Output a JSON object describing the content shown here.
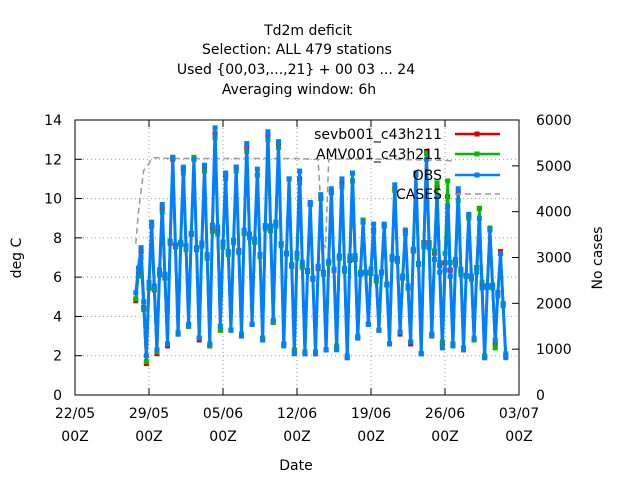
{
  "chart_data": {
    "type": "line",
    "title_lines": [
      "Td2m deficit",
      "Selection: ALL    479 stations",
      "Used {00,03,...,21} + 00 03 ... 24",
      "Averaging window:  6h"
    ],
    "xlabel": "Date",
    "ylabel": "deg C",
    "y2label": "No cases",
    "x_range_days": [
      0,
      42
    ],
    "x_ticks": [
      {
        "day": 0,
        "line1": "22/05",
        "line2": "00Z"
      },
      {
        "day": 7,
        "line1": "29/05",
        "line2": "00Z"
      },
      {
        "day": 14,
        "line1": "05/06",
        "line2": "00Z"
      },
      {
        "day": 21,
        "line1": "12/06",
        "line2": "00Z"
      },
      {
        "day": 28,
        "line1": "19/06",
        "line2": "00Z"
      },
      {
        "day": 35,
        "line1": "26/06",
        "line2": "00Z"
      },
      {
        "day": 42,
        "line1": "03/07",
        "line2": "00Z"
      }
    ],
    "ylim": [
      0,
      14
    ],
    "y_ticks": [
      0,
      2,
      4,
      6,
      8,
      10,
      12,
      14
    ],
    "y2lim": [
      0,
      6000
    ],
    "y2_ticks": [
      0,
      1000,
      2000,
      3000,
      4000,
      5000,
      6000
    ],
    "grid": true,
    "legend_position": "top-right",
    "series": [
      {
        "name": "sevb001_c43h211",
        "color": "#dd0000",
        "marker": "square",
        "axis": "left",
        "peaks": [
          7.3,
          8.6,
          9.5,
          12.0,
          11.5,
          12.0,
          11.6,
          13.3,
          11.2,
          11.6,
          12.6,
          11.2,
          13.2,
          12.8,
          11.0,
          11.0,
          9.7,
          10.0,
          10.3,
          10.8,
          10.9,
          8.9,
          8.4,
          8.6,
          10.5,
          8.3,
          11.2,
          12.4,
          10.6,
          10.1,
          10.3,
          9.1,
          9.5,
          8.5,
          7.3
        ],
        "troughs": [
          4.8,
          1.6,
          2.1,
          2.5,
          3.1,
          3.5,
          2.8,
          2.5,
          3.3,
          3.3,
          3.1,
          3.6,
          2.9,
          3.7,
          2.6,
          2.2,
          2.1,
          2.1,
          2.3,
          2.4,
          1.9,
          2.9,
          3.6,
          3.3,
          2.6,
          3.1,
          2.6,
          2.1,
          3.1,
          2.6,
          2.6,
          2.3,
          2.8,
          1.9,
          2.6,
          2.0
        ]
      },
      {
        "name": "AMV001_c43h211",
        "color": "#00bb00",
        "marker": "square",
        "axis": "left",
        "peaks": [
          7.0,
          8.6,
          9.3,
          12.1,
          11.3,
          12.1,
          11.4,
          13.1,
          11.0,
          11.4,
          12.4,
          11.2,
          13.0,
          12.6,
          11.0,
          10.8,
          9.7,
          10.0,
          10.3,
          10.6,
          10.9,
          8.9,
          8.3,
          8.6,
          10.4,
          8.2,
          11.2,
          12.3,
          10.8,
          10.9,
          9.9,
          9.0,
          9.5,
          8.5,
          7.2
        ],
        "troughs": [
          4.9,
          1.7,
          2.2,
          2.6,
          3.2,
          3.5,
          2.9,
          2.5,
          3.3,
          3.3,
          3.1,
          3.6,
          2.9,
          3.7,
          2.6,
          2.3,
          2.2,
          2.2,
          2.3,
          2.5,
          2.0,
          3.0,
          3.6,
          3.3,
          2.6,
          3.2,
          2.7,
          2.1,
          3.1,
          2.7,
          2.6,
          2.4,
          2.8,
          2.0,
          2.4,
          2.1
        ]
      },
      {
        "name": "OBS",
        "color": "#0080ff",
        "marker": "square",
        "axis": "left",
        "peaks": [
          7.5,
          8.8,
          9.7,
          12.1,
          11.6,
          12.0,
          11.7,
          13.6,
          11.3,
          11.6,
          12.8,
          11.5,
          13.4,
          12.9,
          11.0,
          11.4,
          9.8,
          10.2,
          10.5,
          11.0,
          11.3,
          8.8,
          8.7,
          8.7,
          10.7,
          8.4,
          11.3,
          12.0,
          10.1,
          9.6,
          10.5,
          9.2,
          9.0,
          8.4,
          7.2
        ],
        "troughs": [
          5.2,
          2.0,
          2.3,
          2.6,
          3.1,
          3.6,
          2.9,
          2.6,
          3.5,
          3.3,
          3.0,
          3.6,
          2.8,
          3.8,
          2.5,
          2.1,
          2.1,
          2.1,
          2.3,
          2.3,
          1.9,
          2.9,
          3.6,
          3.3,
          2.6,
          3.2,
          2.7,
          2.1,
          3.0,
          2.4,
          2.5,
          2.3,
          2.9,
          1.9,
          2.8,
          1.9
        ]
      },
      {
        "name": "CASES",
        "color": "#999999",
        "marker": "none",
        "axis": "right",
        "dash": "dashed",
        "x": [
          5.75,
          6.0,
          6.5,
          7.0,
          7.25,
          7.5,
          8.0,
          9.0,
          14.0,
          21.0,
          22.0,
          23.0,
          23.4,
          23.7,
          24.0,
          25.0,
          28.0,
          35.0,
          36.0
        ],
        "y": [
          3300,
          4000,
          4900,
          5050,
          5150,
          5180,
          5170,
          5160,
          5160,
          5160,
          5150,
          5140,
          3500,
          3200,
          5140,
          5150,
          5150,
          5120,
          5100
        ]
      }
    ]
  }
}
